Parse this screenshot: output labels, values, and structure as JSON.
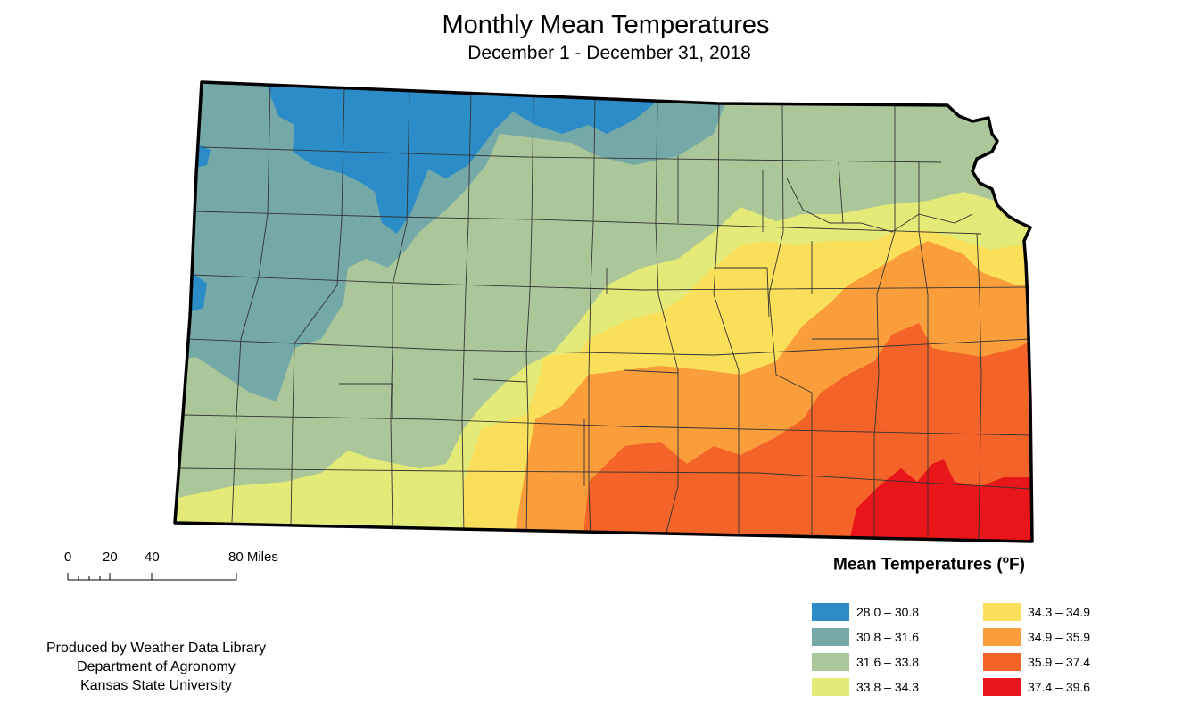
{
  "title": "Monthly Mean Temperatures",
  "subtitle": "December 1 - December 31, 2018",
  "scale_bar": {
    "labels": [
      "0",
      "20",
      "40",
      "80 Miles"
    ]
  },
  "credits": {
    "line1": "Produced by Weather Data Library",
    "line2": "Department of Agronomy",
    "line3": "Kansas State University"
  },
  "legend": {
    "title": "Mean Temperatures (",
    "title_sup": "o",
    "title_unit": "F)",
    "classes": [
      {
        "range": "28.0 – 30.8",
        "color": "#2b8cc8"
      },
      {
        "range": "30.8 – 31.6",
        "color": "#74a9a8"
      },
      {
        "range": "31.6 – 33.8",
        "color": "#abc799"
      },
      {
        "range": "33.8 – 34.3",
        "color": "#e3ea78"
      },
      {
        "range": "34.3 – 34.9",
        "color": "#fadf5a"
      },
      {
        "range": "34.9 – 35.9",
        "color": "#fa9e3c"
      },
      {
        "range": "35.9 – 37.4",
        "color": "#f46428"
      },
      {
        "range": "37.4 – 39.6",
        "color": "#e8151a"
      }
    ]
  }
}
